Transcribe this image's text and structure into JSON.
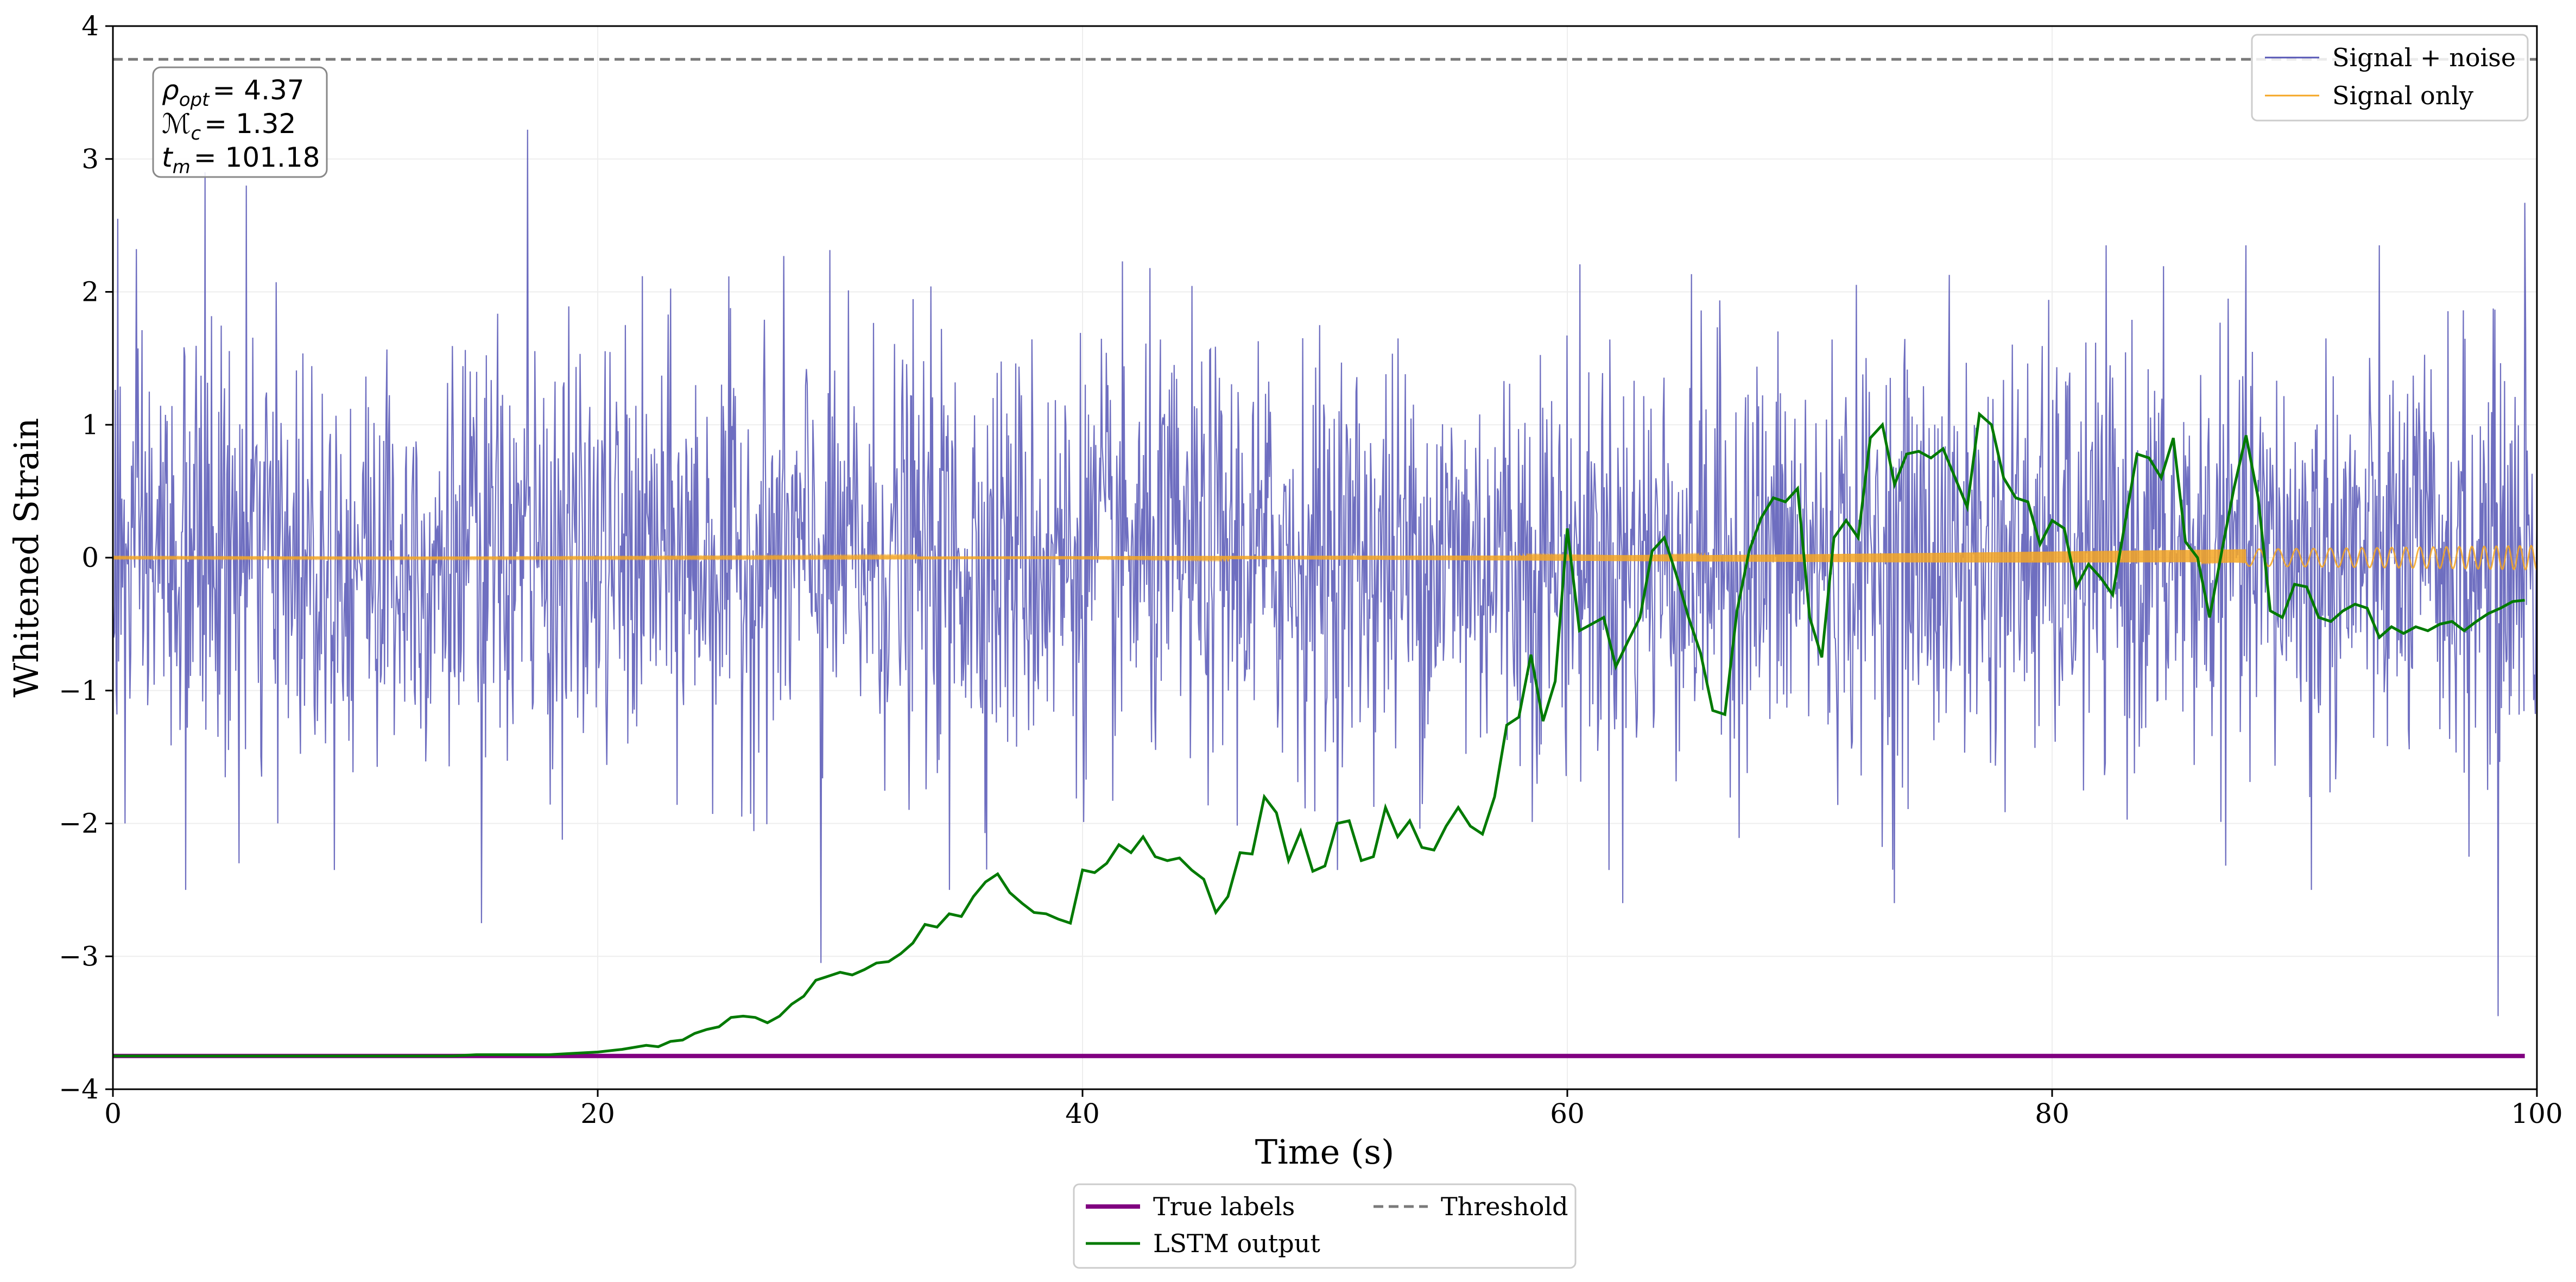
{
  "chart_data": {
    "type": "line",
    "title": "",
    "xlabel": "Time (s)",
    "ylabel": "Whitened Strain",
    "xlim": [
      0,
      100
    ],
    "ylim": [
      -4,
      4
    ],
    "xticks": [
      0,
      20,
      40,
      60,
      80,
      100
    ],
    "xtick_labels": [
      "0",
      "20",
      "40",
      "60",
      "80",
      "100"
    ],
    "yticks": [
      -4,
      -3,
      -2,
      -1,
      0,
      1,
      2,
      3,
      4
    ],
    "ytick_labels": [
      "−4",
      "−3",
      "−2",
      "−1",
      "0",
      "1",
      "2",
      "3",
      "4"
    ],
    "grid": true,
    "threshold": 3.75,
    "annotation": {
      "rho_label": "ρ",
      "rho_sub": "opt",
      "rho_value": "= 4.37",
      "mc_label": "ℳ",
      "mc_sub": "c",
      "mc_value": "= 1.32",
      "tm_label": "t",
      "tm_sub": "m",
      "tm_value": "= 101.18"
    },
    "legend_upper": {
      "position": "upper-right",
      "entries": [
        "Signal + noise",
        "Signal only"
      ]
    },
    "legend_lower": {
      "position": "below-axes",
      "entries": [
        "True labels",
        "LSTM output",
        "Threshold"
      ]
    },
    "series": [
      {
        "name": "Signal + noise",
        "color": "#5555b5",
        "kind": "noise",
        "x_range": [
          0,
          100
        ],
        "samples": 3000,
        "std": 0.78,
        "peaks": [
          [
            0.2,
            2.55
          ],
          [
            0.5,
            -2.0
          ],
          [
            3.0,
            -2.5
          ],
          [
            3.8,
            2.9
          ],
          [
            5.5,
            2.8
          ],
          [
            5.2,
            -2.3
          ],
          [
            15.2,
            -2.75
          ],
          [
            17.1,
            3.22
          ],
          [
            29.2,
            -3.05
          ],
          [
            34.5,
            -2.5
          ],
          [
            62.3,
            -2.6
          ],
          [
            73.5,
            -2.6
          ],
          [
            90.7,
            -2.5
          ],
          [
            97.2,
            -2.25
          ],
          [
            98.4,
            -3.45
          ],
          [
            99.5,
            2.67
          ]
        ]
      },
      {
        "name": "Signal only",
        "color": "#f5a623",
        "kind": "chirp",
        "x_range": [
          0,
          100
        ],
        "amplitude_start": 0.005,
        "amplitude_end": 0.09
      },
      {
        "name": "True labels",
        "color": "#800080",
        "x": [
          0,
          99.5
        ],
        "y": [
          -3.75,
          -3.75
        ]
      },
      {
        "name": "LSTM output",
        "color": "#007a00",
        "x": [
          0,
          5,
          10,
          14,
          15,
          16,
          17,
          18,
          19,
          20,
          21,
          22,
          22.5,
          23,
          23.5,
          24,
          24.5,
          25,
          25.5,
          26,
          26.5,
          27,
          27.5,
          28,
          28.5,
          29,
          29.5,
          30,
          30.5,
          31,
          31.5,
          32,
          32.5,
          33,
          33.5,
          34,
          34.5,
          35,
          35.5,
          36,
          36.5,
          37,
          37.5,
          38,
          38.5,
          39,
          39.5,
          40,
          40.5,
          41,
          41.5,
          42,
          42.5,
          43,
          43.5,
          44,
          44.5,
          45,
          45.5,
          46,
          46.5,
          47,
          47.5,
          48,
          48.5,
          49,
          49.5,
          50,
          50.5,
          51,
          51.5,
          52,
          52.5,
          53,
          53.5,
          54,
          54.5,
          55,
          55.5,
          56,
          56.5,
          57,
          57.5,
          58,
          58.5,
          59,
          59.5,
          60,
          60.5,
          61,
          61.5,
          62,
          62.5,
          63,
          63.5,
          64,
          64.5,
          65,
          65.5,
          66,
          66.5,
          67,
          67.5,
          68,
          68.5,
          69,
          69.5,
          70,
          70.5,
          71,
          71.5,
          72,
          72.5,
          73,
          73.5,
          74,
          74.5,
          75,
          75.5,
          76,
          76.5,
          77,
          77.5,
          78,
          78.5,
          79,
          79.5,
          80,
          80.5,
          81,
          81.5,
          82,
          82.5,
          83,
          83.5,
          84,
          84.5,
          85,
          85.5,
          86,
          86.5,
          87,
          87.5,
          88,
          88.5,
          89,
          89.5,
          90,
          90.5,
          91,
          91.5,
          92,
          92.5,
          93,
          93.5,
          94,
          94.5,
          95,
          95.5,
          96,
          96.5,
          97,
          97.5,
          98,
          98.5,
          99,
          99.5
        ],
        "y": [
          -3.75,
          -3.75,
          -3.75,
          -3.75,
          -3.74,
          -3.74,
          -3.74,
          -3.74,
          -3.73,
          -3.72,
          -3.7,
          -3.67,
          -3.68,
          -3.64,
          -3.63,
          -3.58,
          -3.55,
          -3.53,
          -3.46,
          -3.45,
          -3.46,
          -3.5,
          -3.45,
          -3.36,
          -3.3,
          -3.18,
          -3.15,
          -3.12,
          -3.14,
          -3.1,
          -3.05,
          -3.04,
          -2.98,
          -2.9,
          -2.76,
          -2.78,
          -2.68,
          -2.7,
          -2.55,
          -2.44,
          -2.38,
          -2.52,
          -2.6,
          -2.67,
          -2.68,
          -2.72,
          -2.75,
          -2.35,
          -2.37,
          -2.3,
          -2.16,
          -2.22,
          -2.1,
          -2.25,
          -2.28,
          -2.26,
          -2.35,
          -2.42,
          -2.67,
          -2.55,
          -2.22,
          -2.23,
          -1.8,
          -1.92,
          -2.28,
          -2.06,
          -2.36,
          -2.32,
          -2.0,
          -1.98,
          -2.28,
          -2.25,
          -1.88,
          -2.1,
          -1.98,
          -2.18,
          -2.2,
          -2.02,
          -1.88,
          -2.02,
          -2.08,
          -1.8,
          -1.26,
          -1.2,
          -0.73,
          -1.23,
          -0.93,
          0.22,
          -0.55,
          -0.5,
          -0.45,
          -0.82,
          -0.63,
          -0.45,
          0.05,
          0.15,
          -0.13,
          -0.45,
          -0.72,
          -1.15,
          -1.18,
          -0.4,
          0.05,
          0.3,
          0.45,
          0.42,
          0.52,
          -0.45,
          -0.75,
          0.15,
          0.28,
          0.15,
          0.9,
          1.0,
          0.55,
          0.78,
          0.8,
          0.75,
          0.82,
          0.6,
          0.38,
          1.08,
          1.0,
          0.6,
          0.45,
          0.42,
          0.1,
          0.28,
          0.22,
          -0.22,
          -0.05,
          -0.15,
          -0.28,
          0.25,
          0.78,
          0.75,
          0.6,
          0.9,
          0.12,
          0.0,
          -0.45,
          0.05,
          0.52,
          0.92,
          0.45,
          -0.4,
          -0.45,
          -0.2,
          -0.22,
          -0.45,
          -0.48,
          -0.4,
          -0.35,
          -0.38,
          -0.6,
          -0.52,
          -0.57,
          -0.52,
          -0.55,
          -0.5,
          -0.48,
          -0.55,
          -0.48,
          -0.42,
          -0.38,
          -0.33,
          -0.32
        ]
      },
      {
        "name": "Threshold",
        "color": "#7a7a7a",
        "dashed": true,
        "x": [
          0,
          100
        ],
        "y": [
          3.75,
          3.75
        ]
      }
    ]
  }
}
